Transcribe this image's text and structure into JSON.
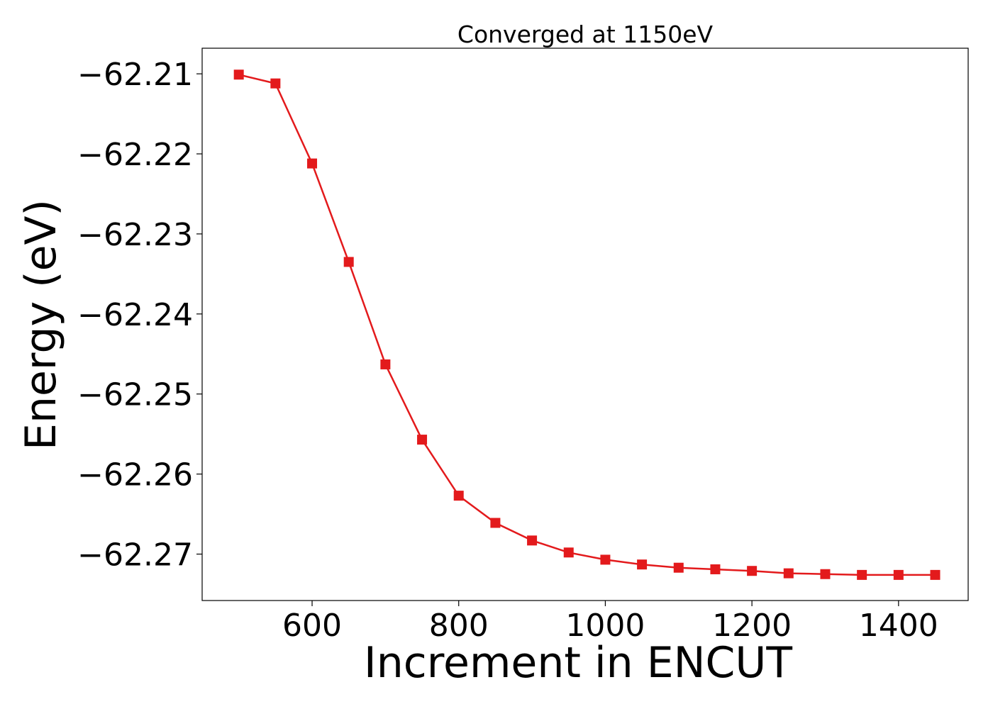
{
  "chart_data": {
    "type": "line",
    "title": "Converged at 1150eV",
    "xlabel": "Increment in ENCUT",
    "ylabel": "Energy (eV)",
    "xlim": [
      450,
      1495
    ],
    "ylim": [
      -62.2758,
      -62.2068
    ],
    "xticks": [
      600,
      800,
      1000,
      1200,
      1400
    ],
    "yticks": [
      -62.21,
      -62.22,
      -62.23,
      -62.24,
      -62.25,
      -62.26,
      -62.27
    ],
    "xtick_labels": [
      "600",
      "800",
      "1000",
      "1200",
      "1400"
    ],
    "ytick_labels": [
      "−62.21",
      "−62.22",
      "−62.23",
      "−62.24",
      "−62.25",
      "−62.26",
      "−62.27"
    ],
    "grid": false,
    "series": [
      {
        "color": "#e31a1c",
        "marker": "square",
        "x": [
          500,
          550,
          600,
          650,
          700,
          750,
          800,
          850,
          900,
          950,
          1000,
          1050,
          1100,
          1150,
          1200,
          1250,
          1300,
          1350,
          1400,
          1450
        ],
        "y": [
          -62.2101,
          -62.2112,
          -62.2212,
          -62.2335,
          -62.2463,
          -62.2557,
          -62.2627,
          -62.2661,
          -62.2683,
          -62.2698,
          -62.2707,
          -62.2713,
          -62.2717,
          -62.2719,
          -62.2721,
          -62.2724,
          -62.2725,
          -62.2726,
          -62.2726,
          -62.2726
        ]
      }
    ]
  }
}
